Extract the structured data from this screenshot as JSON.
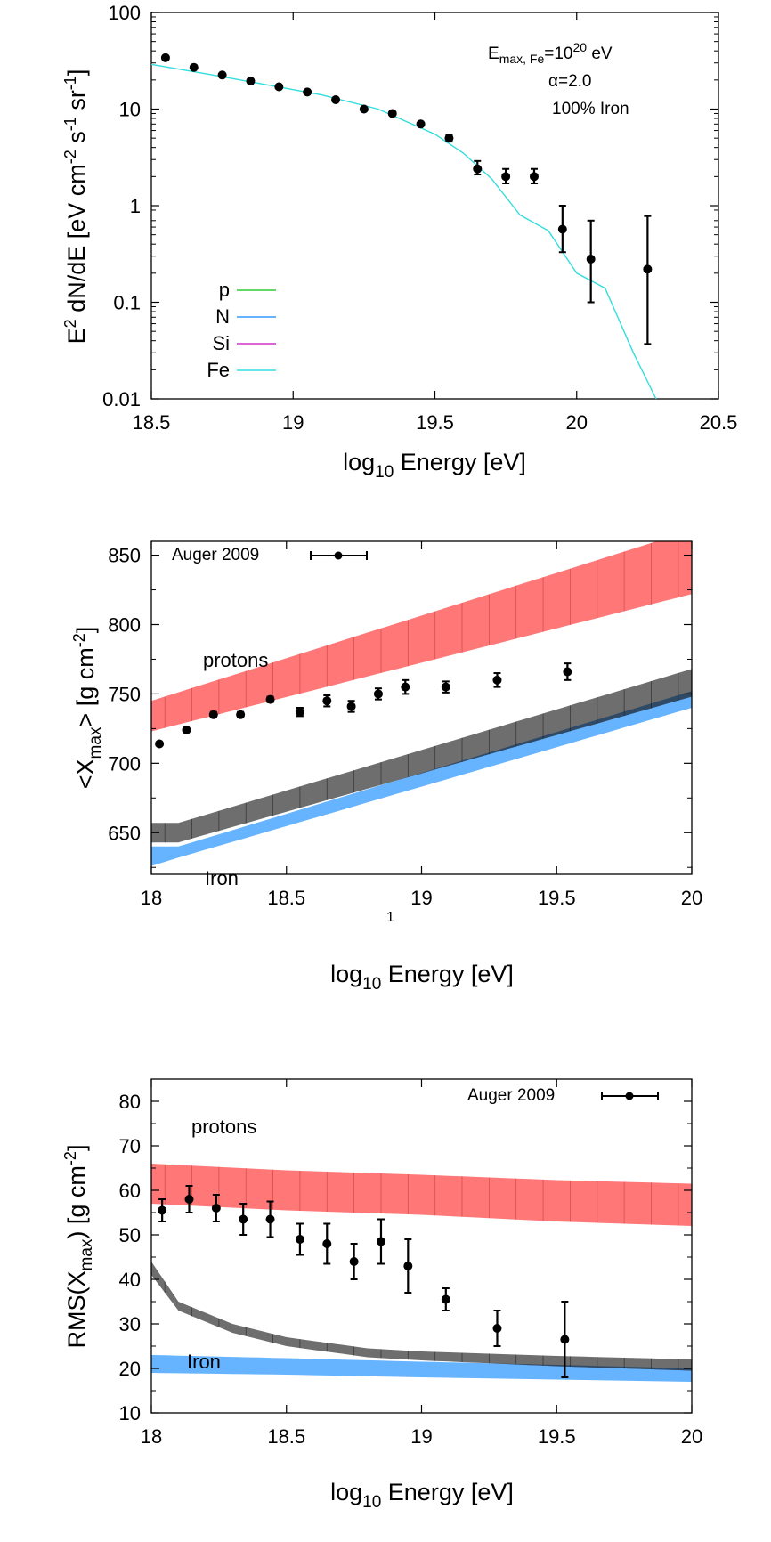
{
  "chart_data": [
    {
      "type": "scatter",
      "xlabel_base": "log",
      "xlabel_sub": "10",
      "xlabel_rest": " Energy [eV]",
      "ylabel_pre": "E",
      "ylabel_sup": "2",
      "ylabel_mid": " dN/dE [eV cm",
      "ylabel_sup2": "-2",
      "ylabel_mid2": " s",
      "ylabel_sup3": "-1",
      "ylabel_mid3": " sr",
      "ylabel_sup4": "-1",
      "ylabel_end": "]",
      "xlim": [
        18.5,
        20.5
      ],
      "ylim": [
        0.01,
        100
      ],
      "yscale": "log",
      "xticks": [
        "18.5",
        "19",
        "19.5",
        "20",
        "20.5"
      ],
      "xtick_values": [
        18.5,
        19,
        19.5,
        20,
        20.5
      ],
      "yticks": [
        "0.01",
        "0.1",
        "1",
        "10",
        "100"
      ],
      "ytick_values": [
        0.01,
        0.1,
        1,
        10,
        100
      ],
      "annotations": {
        "emax_pre": "E",
        "emax_sub": "max, Fe",
        "emax_mid": "=10",
        "emax_sup": "20",
        "emax_end": " eV",
        "alpha": "α=2.0",
        "composition": "100% Iron"
      },
      "legend_position": "bottom-left",
      "legend": [
        {
          "name": "p",
          "color": "#33cc33"
        },
        {
          "name": "N",
          "color": "#3399ff"
        },
        {
          "name": "Si",
          "color": "#cc33cc"
        },
        {
          "name": "Fe",
          "color": "#33dddd"
        }
      ],
      "fe_line": {
        "x": [
          18.5,
          18.7,
          18.9,
          19.1,
          19.3,
          19.5,
          19.6,
          19.7,
          19.8,
          19.9,
          20.0,
          20.1,
          20.2,
          20.28
        ],
        "y": [
          29,
          23,
          18,
          14,
          10,
          5.5,
          3.5,
          1.9,
          0.8,
          0.55,
          0.2,
          0.14,
          0.03,
          0.01
        ]
      },
      "points": {
        "x": [
          18.55,
          18.65,
          18.75,
          18.85,
          18.95,
          19.05,
          19.15,
          19.25,
          19.35,
          19.45,
          19.55,
          19.65,
          19.75,
          19.85,
          19.95,
          20.05,
          20.25
        ],
        "y": [
          34,
          27,
          22.5,
          19.5,
          17,
          15,
          12.5,
          10,
          9,
          7,
          5,
          2.4,
          2.0,
          2.0,
          0.57,
          0.28,
          0.22
        ],
        "ylo": [
          34,
          27,
          22.5,
          19.5,
          17,
          15,
          12.5,
          10,
          9,
          7,
          4.6,
          2.1,
          1.7,
          1.7,
          0.33,
          0.1,
          0.037
        ],
        "yhi": [
          34,
          27,
          22.5,
          19.5,
          17,
          15,
          12.5,
          10,
          9,
          7,
          5.4,
          2.9,
          2.4,
          2.4,
          1.0,
          0.7,
          0.78
        ]
      }
    },
    {
      "type": "scatter",
      "xlabel_base": "log",
      "xlabel_sub": "10",
      "xlabel_rest": " Energy [eV]",
      "ylabel_pre": "<X",
      "ylabel_sub": "max",
      "ylabel_mid": "> [g cm",
      "ylabel_sup": "-2",
      "ylabel_end": "]",
      "xlim": [
        18,
        20
      ],
      "ylim": [
        620,
        860
      ],
      "xticks": [
        "18",
        "18.5",
        "19",
        "19.5",
        "20"
      ],
      "xtick_values": [
        18,
        18.5,
        19,
        19.5,
        20
      ],
      "yticks": [
        "650",
        "700",
        "750",
        "800",
        "850"
      ],
      "ytick_values": [
        650,
        700,
        750,
        800,
        850
      ],
      "stray_label": "1",
      "legend_position": "top-left",
      "legend": [
        {
          "name": "Auger 2009"
        }
      ],
      "labels": {
        "protons": "protons",
        "iron": "Iron"
      },
      "colors": {
        "proton_band": "#ff7777",
        "iron_band": "#66b3ff",
        "gray_band": "#6e6e6e",
        "overlap": "#2f4a66"
      },
      "bands": {
        "proton": {
          "x": [
            18,
            20
          ],
          "lo": [
            723,
            822
          ],
          "hi": [
            745,
            868
          ]
        },
        "iron_blue": {
          "x": [
            18,
            18.1,
            20
          ],
          "lo": [
            626,
            632,
            740
          ],
          "hi": [
            640,
            640,
            752
          ]
        },
        "gray": {
          "x": [
            18,
            18.1,
            20
          ],
          "lo": [
            643,
            643,
            748
          ],
          "hi": [
            657,
            657,
            768
          ]
        }
      },
      "points": {
        "x": [
          18.03,
          18.13,
          18.23,
          18.33,
          18.44,
          18.55,
          18.65,
          18.74,
          18.84,
          18.94,
          19.09,
          19.28,
          19.54
        ],
        "y": [
          714,
          724,
          735,
          735,
          746,
          737,
          745,
          741,
          750,
          755,
          755,
          760,
          766
        ],
        "err": [
          1.5,
          1.5,
          2,
          2,
          2,
          3,
          4,
          4,
          4,
          5,
          4,
          5,
          6
        ]
      }
    },
    {
      "type": "scatter",
      "xlabel_base": "log",
      "xlabel_sub": "10",
      "xlabel_rest": " Energy [eV]",
      "ylabel_pre": "RMS(X",
      "ylabel_sub": "max",
      "ylabel_mid": ") [g cm",
      "ylabel_sup": "-2",
      "ylabel_end": "]",
      "xlim": [
        18,
        20
      ],
      "ylim": [
        10,
        85
      ],
      "xticks": [
        "18",
        "18.5",
        "19",
        "19.5",
        "20"
      ],
      "xtick_values": [
        18,
        18.5,
        19,
        19.5,
        20
      ],
      "yticks": [
        "10",
        "20",
        "30",
        "40",
        "50",
        "60",
        "70",
        "80"
      ],
      "ytick_values": [
        10,
        20,
        30,
        40,
        50,
        60,
        70,
        80
      ],
      "legend_position": "top-right",
      "legend": [
        {
          "name": "Auger 2009"
        }
      ],
      "labels": {
        "protons": "protons",
        "iron": "Iron"
      },
      "colors": {
        "proton_band": "#ff7777",
        "iron_band": "#66b3ff",
        "gray_band": "#6e6e6e",
        "overlap": "#2f4a66"
      },
      "bands": {
        "proton": {
          "x": [
            18,
            18.5,
            19,
            19.5,
            20
          ],
          "lo": [
            57,
            55.5,
            54.5,
            53,
            52
          ],
          "hi": [
            66,
            64.5,
            63.5,
            62.3,
            61.5
          ]
        },
        "iron_blue": {
          "x": [
            18,
            18.5,
            19,
            19.5,
            20
          ],
          "lo": [
            19,
            18.6,
            18,
            17.5,
            17
          ],
          "hi": [
            23,
            22.3,
            21.5,
            20.8,
            20
          ]
        },
        "gray": {
          "x": [
            18,
            18.1,
            18.3,
            18.5,
            18.8,
            19,
            19.5,
            20
          ],
          "lo": [
            41,
            33,
            28,
            25,
            22.5,
            21.8,
            20.5,
            19.5
          ],
          "hi": [
            44,
            35,
            30,
            27,
            24.5,
            23.8,
            22.8,
            22
          ]
        }
      },
      "points": {
        "x": [
          18.04,
          18.14,
          18.24,
          18.34,
          18.44,
          18.55,
          18.65,
          18.75,
          18.85,
          18.95,
          19.09,
          19.28,
          19.53
        ],
        "y": [
          55.5,
          58,
          56,
          53.5,
          53.5,
          49,
          48,
          44,
          48.5,
          43,
          35.5,
          29,
          26.5
        ],
        "err": [
          2.5,
          3,
          3,
          3.5,
          4,
          3.5,
          4.5,
          4,
          5,
          6,
          2.5,
          4,
          8.5
        ]
      }
    }
  ]
}
